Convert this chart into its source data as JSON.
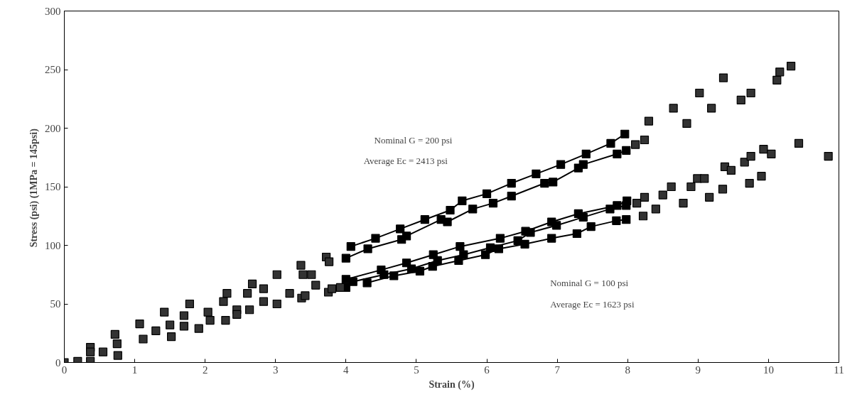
{
  "chart_data": {
    "type": "scatter",
    "xlabel": "Strain (%)",
    "ylabel": "Stress (psi)  (1MPa = 145psi)",
    "annotations": [
      "Nominal G = 200 psi",
      "Average Ec  = 2413 psi",
      "Nominal G = 100 psi",
      "Average Ec  = 1623 psi"
    ],
    "xlim": [
      0,
      11
    ],
    "ylim": [
      0,
      300
    ],
    "xticks": [
      0,
      1,
      2,
      3,
      4,
      5,
      6,
      7,
      8,
      9,
      10,
      11
    ],
    "yticks": [
      0,
      50,
      100,
      150,
      200,
      250,
      300
    ],
    "grid": false,
    "marker": "square",
    "series": [
      {
        "type": "line",
        "color": "#000000",
        "x": [
          4.07,
          4.42,
          4.77,
          5.12,
          5.48,
          5.65,
          6.0,
          6.35,
          6.7,
          7.05,
          7.41,
          7.76,
          7.96
        ],
        "values": [
          99,
          106,
          114,
          122,
          130,
          138,
          144,
          153,
          161,
          169,
          178,
          187,
          195
        ]
      },
      {
        "type": "line",
        "color": "#000000",
        "x": [
          4.0,
          4.31,
          4.79,
          4.86,
          5.35,
          5.44,
          5.8,
          6.09,
          6.35,
          6.82,
          6.94,
          7.3,
          7.37,
          7.85,
          7.98
        ],
        "values": [
          89,
          97,
          105,
          108,
          122,
          120,
          131,
          136,
          142,
          153,
          154,
          166,
          169,
          178,
          181
        ]
      },
      {
        "type": "line",
        "color": "#000000",
        "x": [
          4.0,
          4.5,
          4.86,
          5.24,
          5.62,
          6.19,
          6.55,
          6.92,
          7.3,
          7.85,
          7.99
        ],
        "values": [
          71,
          79,
          85,
          92,
          99,
          106,
          112,
          120,
          127,
          134,
          138
        ]
      },
      {
        "type": "line",
        "color": "#000000",
        "x": [
          4.0,
          4.1,
          4.54,
          4.93,
          5.3,
          5.67,
          6.05,
          6.44,
          6.62,
          6.99,
          7.37,
          7.75,
          7.98
        ],
        "values": [
          64,
          69,
          75,
          80,
          87,
          92,
          98,
          104,
          111,
          117,
          124,
          131,
          134
        ]
      },
      {
        "type": "line",
        "color": "#000000",
        "x": [
          4.3,
          4.68,
          5.05,
          5.23,
          5.6,
          5.98,
          6.17,
          6.54,
          6.92,
          7.28,
          7.48,
          7.84,
          7.98
        ],
        "values": [
          68,
          74,
          78,
          82,
          87,
          92,
          97,
          101,
          106,
          110,
          116,
          121,
          122
        ]
      },
      {
        "color": "#333333",
        "x": [
          0,
          0.19,
          0.37,
          0.37,
          0.37,
          0.55,
          0.72,
          0.75,
          0.76,
          1.07,
          1.12,
          1.3,
          1.42,
          1.5,
          1.52,
          1.7,
          1.7,
          1.78,
          1.91,
          2.04,
          2.07,
          2.26,
          2.31,
          2.29,
          2.45,
          2.45,
          2.6,
          2.67,
          2.63,
          2.83,
          2.83,
          3.02,
          3.02,
          3.2,
          3.36,
          3.39,
          3.51,
          3.37,
          3.42,
          3.57,
          3.72,
          3.76,
          3.75,
          3.8,
          3.92,
          8.11,
          8.24,
          8.3,
          8.65,
          8.84,
          9.02,
          9.19,
          9.36,
          9.61,
          9.75,
          10.12,
          10.16,
          10.32,
          8.13,
          8.24,
          8.22,
          8.4,
          8.5,
          8.62,
          8.79,
          8.9,
          8.99,
          9.09,
          9.16,
          9.35,
          9.38,
          9.47,
          9.66,
          9.73,
          9.75,
          9.9,
          9.93,
          10.04,
          10.43,
          10.85
        ],
        "values": [
          0,
          1,
          13,
          9,
          1,
          9,
          24,
          16,
          6,
          33,
          20,
          27,
          43,
          32,
          22,
          40,
          31,
          50,
          29,
          43,
          36,
          52,
          59,
          36,
          45,
          41,
          59,
          67,
          45,
          63,
          52,
          75,
          50,
          59,
          83,
          75,
          75,
          55,
          57,
          66,
          90,
          86,
          60,
          63,
          64,
          186,
          190,
          206,
          217,
          204,
          230,
          217,
          243,
          224,
          230,
          241,
          248,
          253,
          136,
          141,
          125,
          131,
          143,
          150,
          136,
          150,
          157,
          157,
          141,
          148,
          167,
          164,
          171,
          153,
          176,
          159,
          182,
          178,
          187,
          176
        ]
      }
    ]
  }
}
